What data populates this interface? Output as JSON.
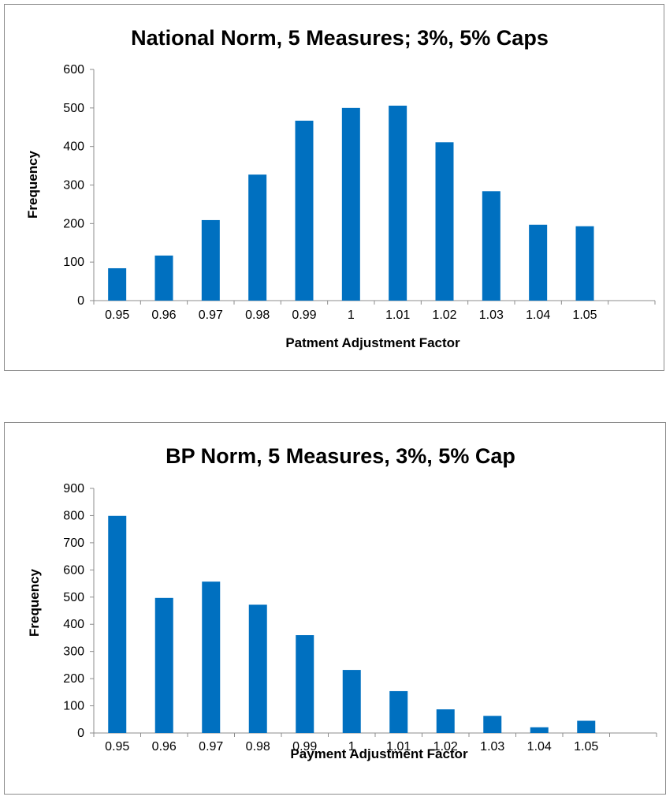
{
  "chart_data": [
    {
      "type": "bar",
      "title": "National Norm, 5 Measures; 3%, 5% Caps",
      "xlabel": "Patment Adjustment Factor",
      "ylabel": "Frequency",
      "ylim": [
        0,
        600
      ],
      "yticks": [
        "0",
        "100",
        "200",
        "300",
        "400",
        "500",
        "600"
      ],
      "categories": [
        "0.95",
        "0.96",
        "0.97",
        "0.98",
        "0.99",
        "1",
        "1.01",
        "1.02",
        "1.03",
        "1.04",
        "1.05"
      ],
      "values": [
        84,
        117,
        209,
        327,
        467,
        500,
        506,
        411,
        284,
        197,
        193
      ],
      "bar_color": "#0070c0",
      "grid": false
    },
    {
      "type": "bar",
      "title": "BP Norm, 5 Measures, 3%, 5% Cap",
      "xlabel": "Payment Adjustment Factor",
      "ylabel": "Frequency",
      "ylim": [
        0,
        900
      ],
      "yticks": [
        "0",
        "100",
        "200",
        "300",
        "400",
        "500",
        "600",
        "700",
        "800",
        "900"
      ],
      "categories": [
        "0.95",
        "0.96",
        "0.97",
        "0.98",
        "0.99",
        "1",
        "1.01",
        "1.02",
        "1.03",
        "1.04",
        "1.05"
      ],
      "values": [
        799,
        497,
        557,
        472,
        360,
        232,
        154,
        87,
        63,
        21,
        45
      ],
      "bar_color": "#0070c0",
      "grid": false
    }
  ]
}
